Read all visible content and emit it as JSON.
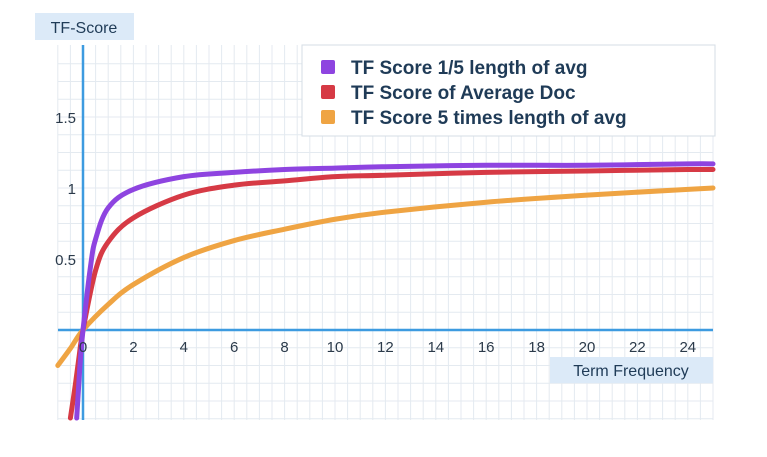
{
  "chart_data": {
    "type": "line",
    "ylabel": "TF-Score",
    "xlabel": "Term Frequency",
    "xlim": [
      -1,
      25
    ],
    "ylim": [
      -0.65,
      2.0
    ],
    "x_ticks": [
      {
        "v": 0,
        "t": "0"
      },
      {
        "v": 2,
        "t": "2"
      },
      {
        "v": 4,
        "t": "4"
      },
      {
        "v": 6,
        "t": "6"
      },
      {
        "v": 8,
        "t": "8"
      },
      {
        "v": 10,
        "t": "10"
      },
      {
        "v": 12,
        "t": "12"
      },
      {
        "v": 14,
        "t": "14"
      },
      {
        "v": 16,
        "t": "16"
      },
      {
        "v": 18,
        "t": "18"
      },
      {
        "v": 20,
        "t": "20"
      },
      {
        "v": 22,
        "t": "22"
      },
      {
        "v": 24,
        "t": "24"
      }
    ],
    "y_ticks": [
      {
        "v": 0.5,
        "t": "0.5"
      },
      {
        "v": 1,
        "t": "1"
      },
      {
        "v": 1.5,
        "t": "1.5"
      }
    ],
    "grid": true,
    "legend_position": "top-right",
    "series": [
      {
        "name": "TF Score 1/5 length of avg",
        "color": "#8e44e0",
        "x": [
          -0.25,
          -0.15,
          -0.1,
          0,
          0.3,
          0.5,
          1,
          2,
          4,
          6,
          8,
          10,
          12,
          16,
          20,
          24,
          25
        ],
        "y": [
          -0.62,
          -0.33,
          -0.2,
          0,
          0.45,
          0.64,
          0.86,
          0.99,
          1.08,
          1.11,
          1.13,
          1.14,
          1.15,
          1.16,
          1.16,
          1.17,
          1.17
        ]
      },
      {
        "name": "TF Score of Average Doc",
        "color": "#d63a45",
        "x": [
          -0.5,
          -0.3,
          -0.15,
          0,
          0.5,
          1,
          2,
          4,
          6,
          8,
          10,
          12,
          16,
          20,
          24,
          25
        ],
        "y": [
          -0.62,
          -0.38,
          -0.18,
          0,
          0.42,
          0.62,
          0.79,
          0.95,
          1.02,
          1.05,
          1.08,
          1.09,
          1.11,
          1.12,
          1.13,
          1.13
        ]
      },
      {
        "name": "TF Score 5 times length of avg",
        "color": "#efa443",
        "x": [
          -1,
          -0.5,
          0,
          1,
          2,
          4,
          6,
          8,
          10,
          12,
          16,
          20,
          24,
          25
        ],
        "y": [
          -0.25,
          -0.13,
          0,
          0.18,
          0.32,
          0.51,
          0.63,
          0.71,
          0.78,
          0.83,
          0.9,
          0.95,
          0.99,
          1.0
        ]
      }
    ]
  }
}
